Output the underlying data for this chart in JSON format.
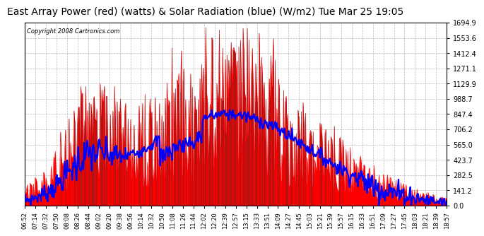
{
  "title": "East Array Power (red) (watts) & Solar Radiation (blue) (W/m2) Tue Mar 25 19:05",
  "copyright": "Copyright 2008 Cartronics.com",
  "title_fontsize": 10,
  "background_color": "#ffffff",
  "plot_bg_color": "#ffffff",
  "grid_color": "#aaaaaa",
  "red_color": "#ff0000",
  "blue_color": "#0000ff",
  "black_color": "#000000",
  "ylim": [
    0,
    1694.9
  ],
  "yticks": [
    0.0,
    141.2,
    282.5,
    423.7,
    565.0,
    706.2,
    847.4,
    988.7,
    1129.9,
    1271.1,
    1412.4,
    1553.6,
    1694.9
  ],
  "x_labels": [
    "06:52",
    "07:14",
    "07:32",
    "07:50",
    "08:08",
    "08:26",
    "08:44",
    "09:02",
    "09:20",
    "09:38",
    "09:56",
    "10:14",
    "10:32",
    "10:50",
    "11:08",
    "11:26",
    "11:44",
    "12:02",
    "12:20",
    "12:39",
    "12:57",
    "13:15",
    "13:33",
    "13:51",
    "14:09",
    "14:27",
    "14:45",
    "15:03",
    "15:21",
    "15:39",
    "15:57",
    "16:15",
    "16:33",
    "16:51",
    "17:09",
    "17:27",
    "17:45",
    "18:03",
    "18:21",
    "18:39",
    "18:57"
  ]
}
